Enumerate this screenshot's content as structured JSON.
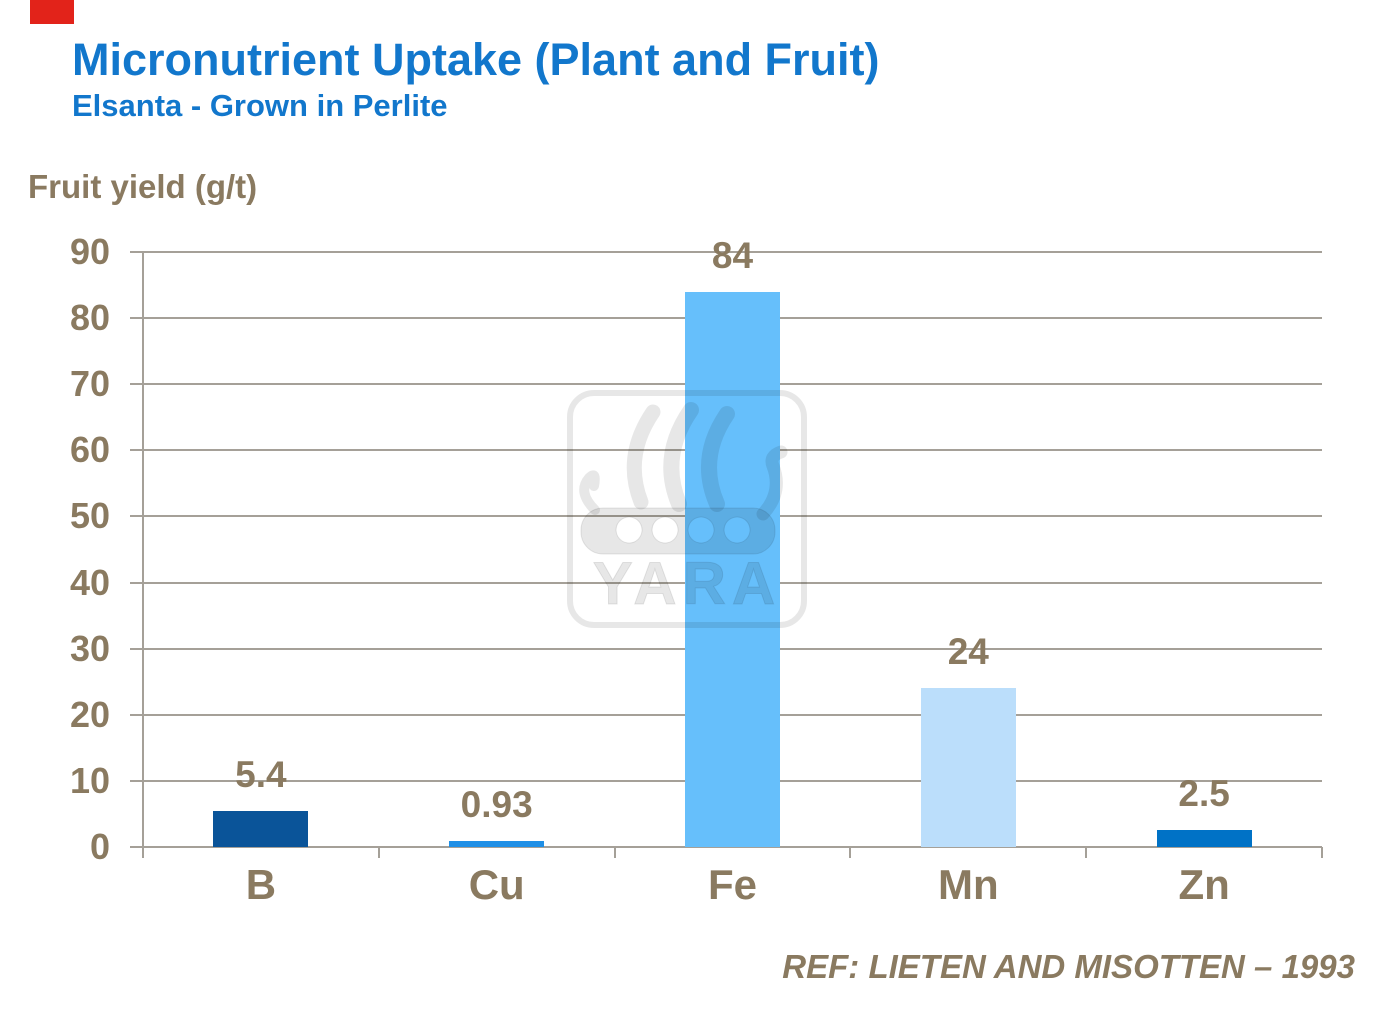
{
  "slide": {
    "title": "Micronutrient Uptake (Plant and Fruit)",
    "subtitle": "Elsanta - Grown in Perlite",
    "ylabel": "Fruit yield (g/t)",
    "reference": "REF:  LIETEN AND MISOTTEN – 1993",
    "watermark_text": "YARA"
  },
  "colors": {
    "title_blue": "#1277CC",
    "label_brown": "#8A7A60",
    "axis_gray": "#A5A098",
    "corner_red": "#E2231A",
    "watermark_gray": "rgba(0,0,0,0.095)"
  },
  "chart_data": {
    "type": "bar",
    "title": "Micronutrient Uptake (Plant and Fruit)",
    "subtitle": "Elsanta - Grown in Perlite",
    "xlabel": "",
    "ylabel": "Fruit yield (g/t)",
    "categories": [
      "B",
      "Cu",
      "Fe",
      "Mn",
      "Zn"
    ],
    "values": [
      5.4,
      0.93,
      84,
      24,
      2.5
    ],
    "value_labels": [
      "5.4",
      "0.93",
      "84",
      "24",
      "2.5"
    ],
    "bar_colors": [
      "#0A5499",
      "#1F8FE6",
      "#66BFFB",
      "#BBDEFB",
      "#0072C6"
    ],
    "ylim": [
      0,
      90
    ],
    "yticks": [
      0,
      10,
      20,
      30,
      40,
      50,
      60,
      70,
      80,
      90
    ],
    "grid": true,
    "legend": "none",
    "annotation": "REF:  LIETEN AND MISOTTEN – 1993"
  }
}
